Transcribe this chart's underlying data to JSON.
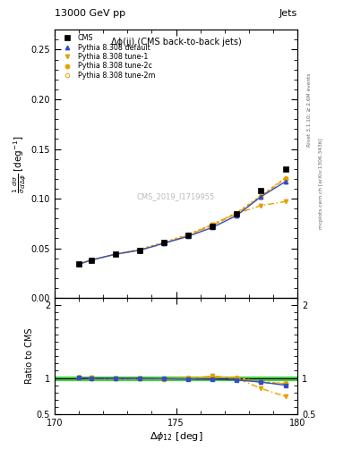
{
  "title_main": "13000 GeV pp",
  "title_right": "Jets",
  "plot_title": "Δϕ(jj) (CMS back-to-back jets)",
  "watermark": "CMS_2019_I1719955",
  "right_label": "mcplots.cern.ch [arXiv:1306.3436]",
  "right_label2": "Rivet 3.1.10; ≥ 2.6M events",
  "xlabel": "Δϕ₁₂ [deg]",
  "ylabel_ratio": "Ratio to CMS",
  "xlim": [
    170,
    180
  ],
  "ylim_main": [
    0.0,
    0.27
  ],
  "ylim_ratio": [
    0.5,
    2.1
  ],
  "cms_x": [
    171.0,
    171.5,
    172.5,
    173.5,
    174.5,
    175.5,
    176.5,
    177.5,
    178.5,
    179.5
  ],
  "cms_y": [
    0.034,
    0.038,
    0.044,
    0.048,
    0.056,
    0.063,
    0.072,
    0.085,
    0.108,
    0.13
  ],
  "default_x": [
    171.0,
    171.5,
    172.5,
    173.5,
    174.5,
    175.5,
    176.5,
    177.5,
    178.5,
    179.5
  ],
  "default_y": [
    0.034,
    0.038,
    0.044,
    0.048,
    0.055,
    0.062,
    0.071,
    0.083,
    0.102,
    0.117
  ],
  "tune1_x": [
    171.0,
    171.5,
    172.5,
    173.5,
    174.5,
    175.5,
    176.5,
    177.5,
    178.5,
    179.5
  ],
  "tune1_y": [
    0.034,
    0.038,
    0.044,
    0.048,
    0.055,
    0.063,
    0.074,
    0.085,
    0.093,
    0.097
  ],
  "tune2c_x": [
    171.0,
    171.5,
    172.5,
    173.5,
    174.5,
    175.5,
    176.5,
    177.5,
    178.5,
    179.5
  ],
  "tune2c_y": [
    0.034,
    0.038,
    0.044,
    0.048,
    0.055,
    0.063,
    0.073,
    0.085,
    0.102,
    0.12
  ],
  "tune2m_x": [
    171.0,
    171.5,
    172.5,
    173.5,
    174.5,
    175.5,
    176.5,
    177.5,
    178.5,
    179.5
  ],
  "tune2m_y": [
    0.034,
    0.038,
    0.044,
    0.049,
    0.056,
    0.064,
    0.074,
    0.086,
    0.103,
    0.121
  ],
  "ratio_x": [
    171.0,
    171.5,
    172.5,
    173.5,
    174.5,
    175.5,
    176.5,
    177.5,
    178.5,
    179.5
  ],
  "ratio_default": [
    1.003,
    1.0,
    0.998,
    0.997,
    0.99,
    0.985,
    0.982,
    0.975,
    0.945,
    0.902
  ],
  "ratio_tune1": [
    1.005,
    1.002,
    1.0,
    0.998,
    0.985,
    0.994,
    1.028,
    0.998,
    0.858,
    0.748
  ],
  "ratio_tune2c": [
    1.003,
    1.0,
    0.999,
    0.998,
    0.985,
    0.995,
    1.01,
    0.995,
    0.941,
    0.922
  ],
  "ratio_tune2m": [
    1.003,
    1.0,
    0.999,
    1.001,
    0.994,
    1.002,
    1.019,
    1.005,
    0.95,
    0.929
  ],
  "color_cms": "#000000",
  "color_default": "#3050c0",
  "color_tune1": "#e8a000",
  "color_tune2c": "#e8a000",
  "color_tune2m": "#e8a000",
  "color_green": "#00bb00",
  "legend_entries": [
    "CMS",
    "Pythia 8.308 default",
    "Pythia 8.308 tune-1",
    "Pythia 8.308 tune-2c",
    "Pythia 8.308 tune-2m"
  ]
}
